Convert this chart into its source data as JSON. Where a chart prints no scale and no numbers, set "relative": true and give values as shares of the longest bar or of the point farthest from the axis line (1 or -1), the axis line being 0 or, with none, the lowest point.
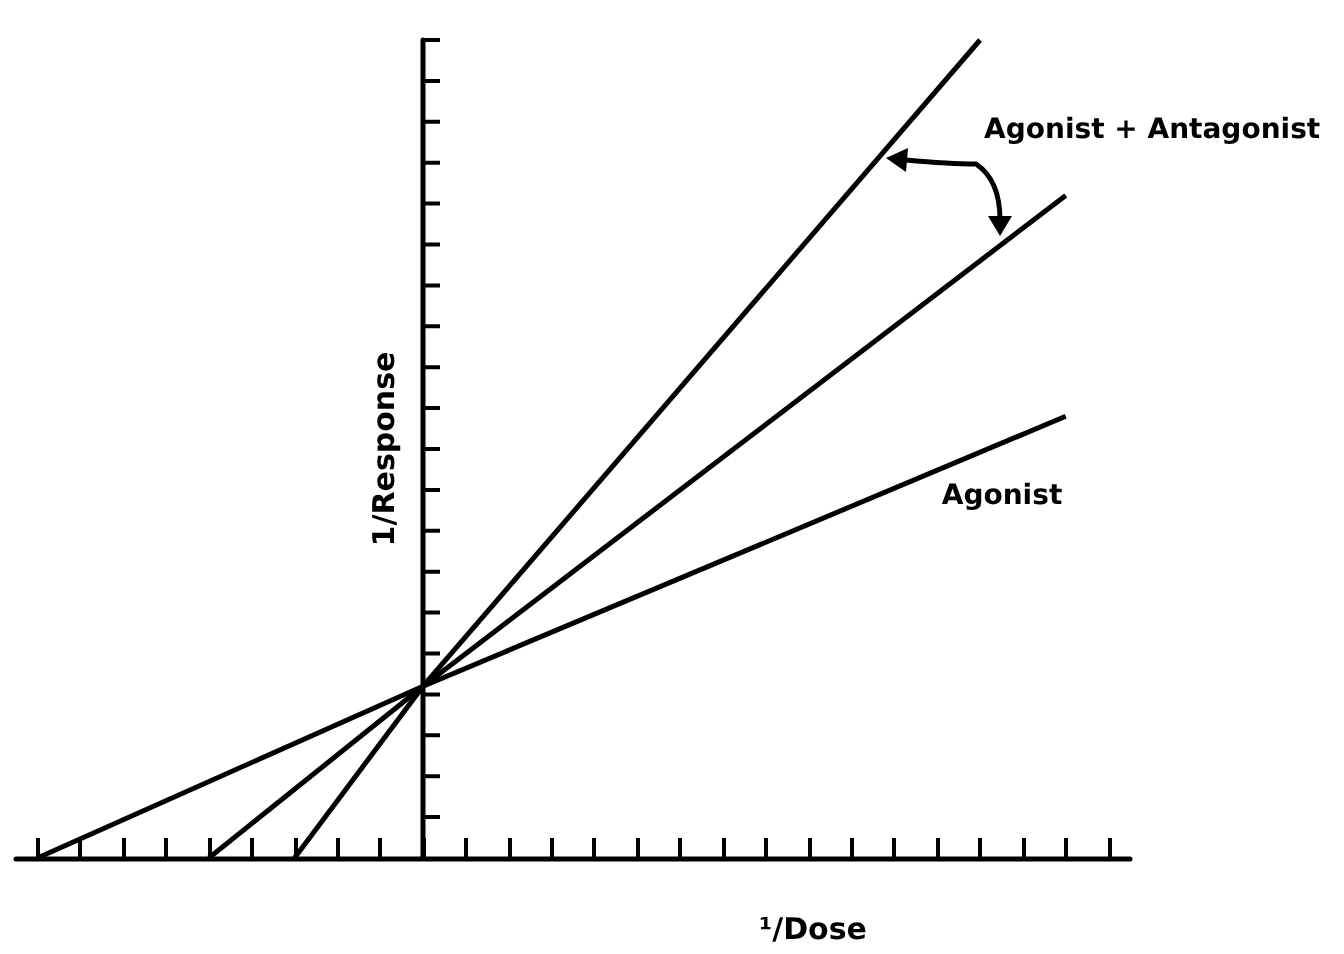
{
  "chart_data": {
    "type": "line",
    "relative": true,
    "xlabel": "¹/Dose",
    "ylabel": "1/Response",
    "categories": [
      null,
      null,
      null,
      null,
      null,
      null,
      null,
      null,
      null,
      null,
      null,
      null,
      null,
      null,
      null,
      null,
      null,
      null,
      null,
      null,
      null,
      null,
      null,
      null,
      null,
      null
    ],
    "series": [
      {
        "name": "Agonist",
        "color": "#000000",
        "values": [
          0,
          null,
          null,
          null,
          null,
          null,
          null,
          null,
          null,
          0.21,
          null,
          null,
          null,
          null,
          null,
          null,
          null,
          null,
          null,
          null,
          null,
          null,
          null,
          null,
          0.54,
          null
        ]
      },
      {
        "color": "#000000",
        "values": [
          null,
          null,
          null,
          null,
          0,
          null,
          null,
          null,
          null,
          0.21,
          null,
          null,
          null,
          null,
          null,
          null,
          null,
          null,
          null,
          null,
          null,
          null,
          null,
          null,
          0.81,
          null
        ]
      },
      {
        "color": "#000000",
        "values": [
          null,
          null,
          null,
          null,
          null,
          null,
          0,
          null,
          null,
          0.21,
          null,
          null,
          null,
          null,
          null,
          null,
          null,
          null,
          null,
          null,
          null,
          null,
          1,
          null,
          null,
          null
        ]
      }
    ],
    "annotations": [
      "Agonist + Antagonist"
    ],
    "marker": "none",
    "line_style": "solid",
    "grid": false,
    "legend": false
  }
}
